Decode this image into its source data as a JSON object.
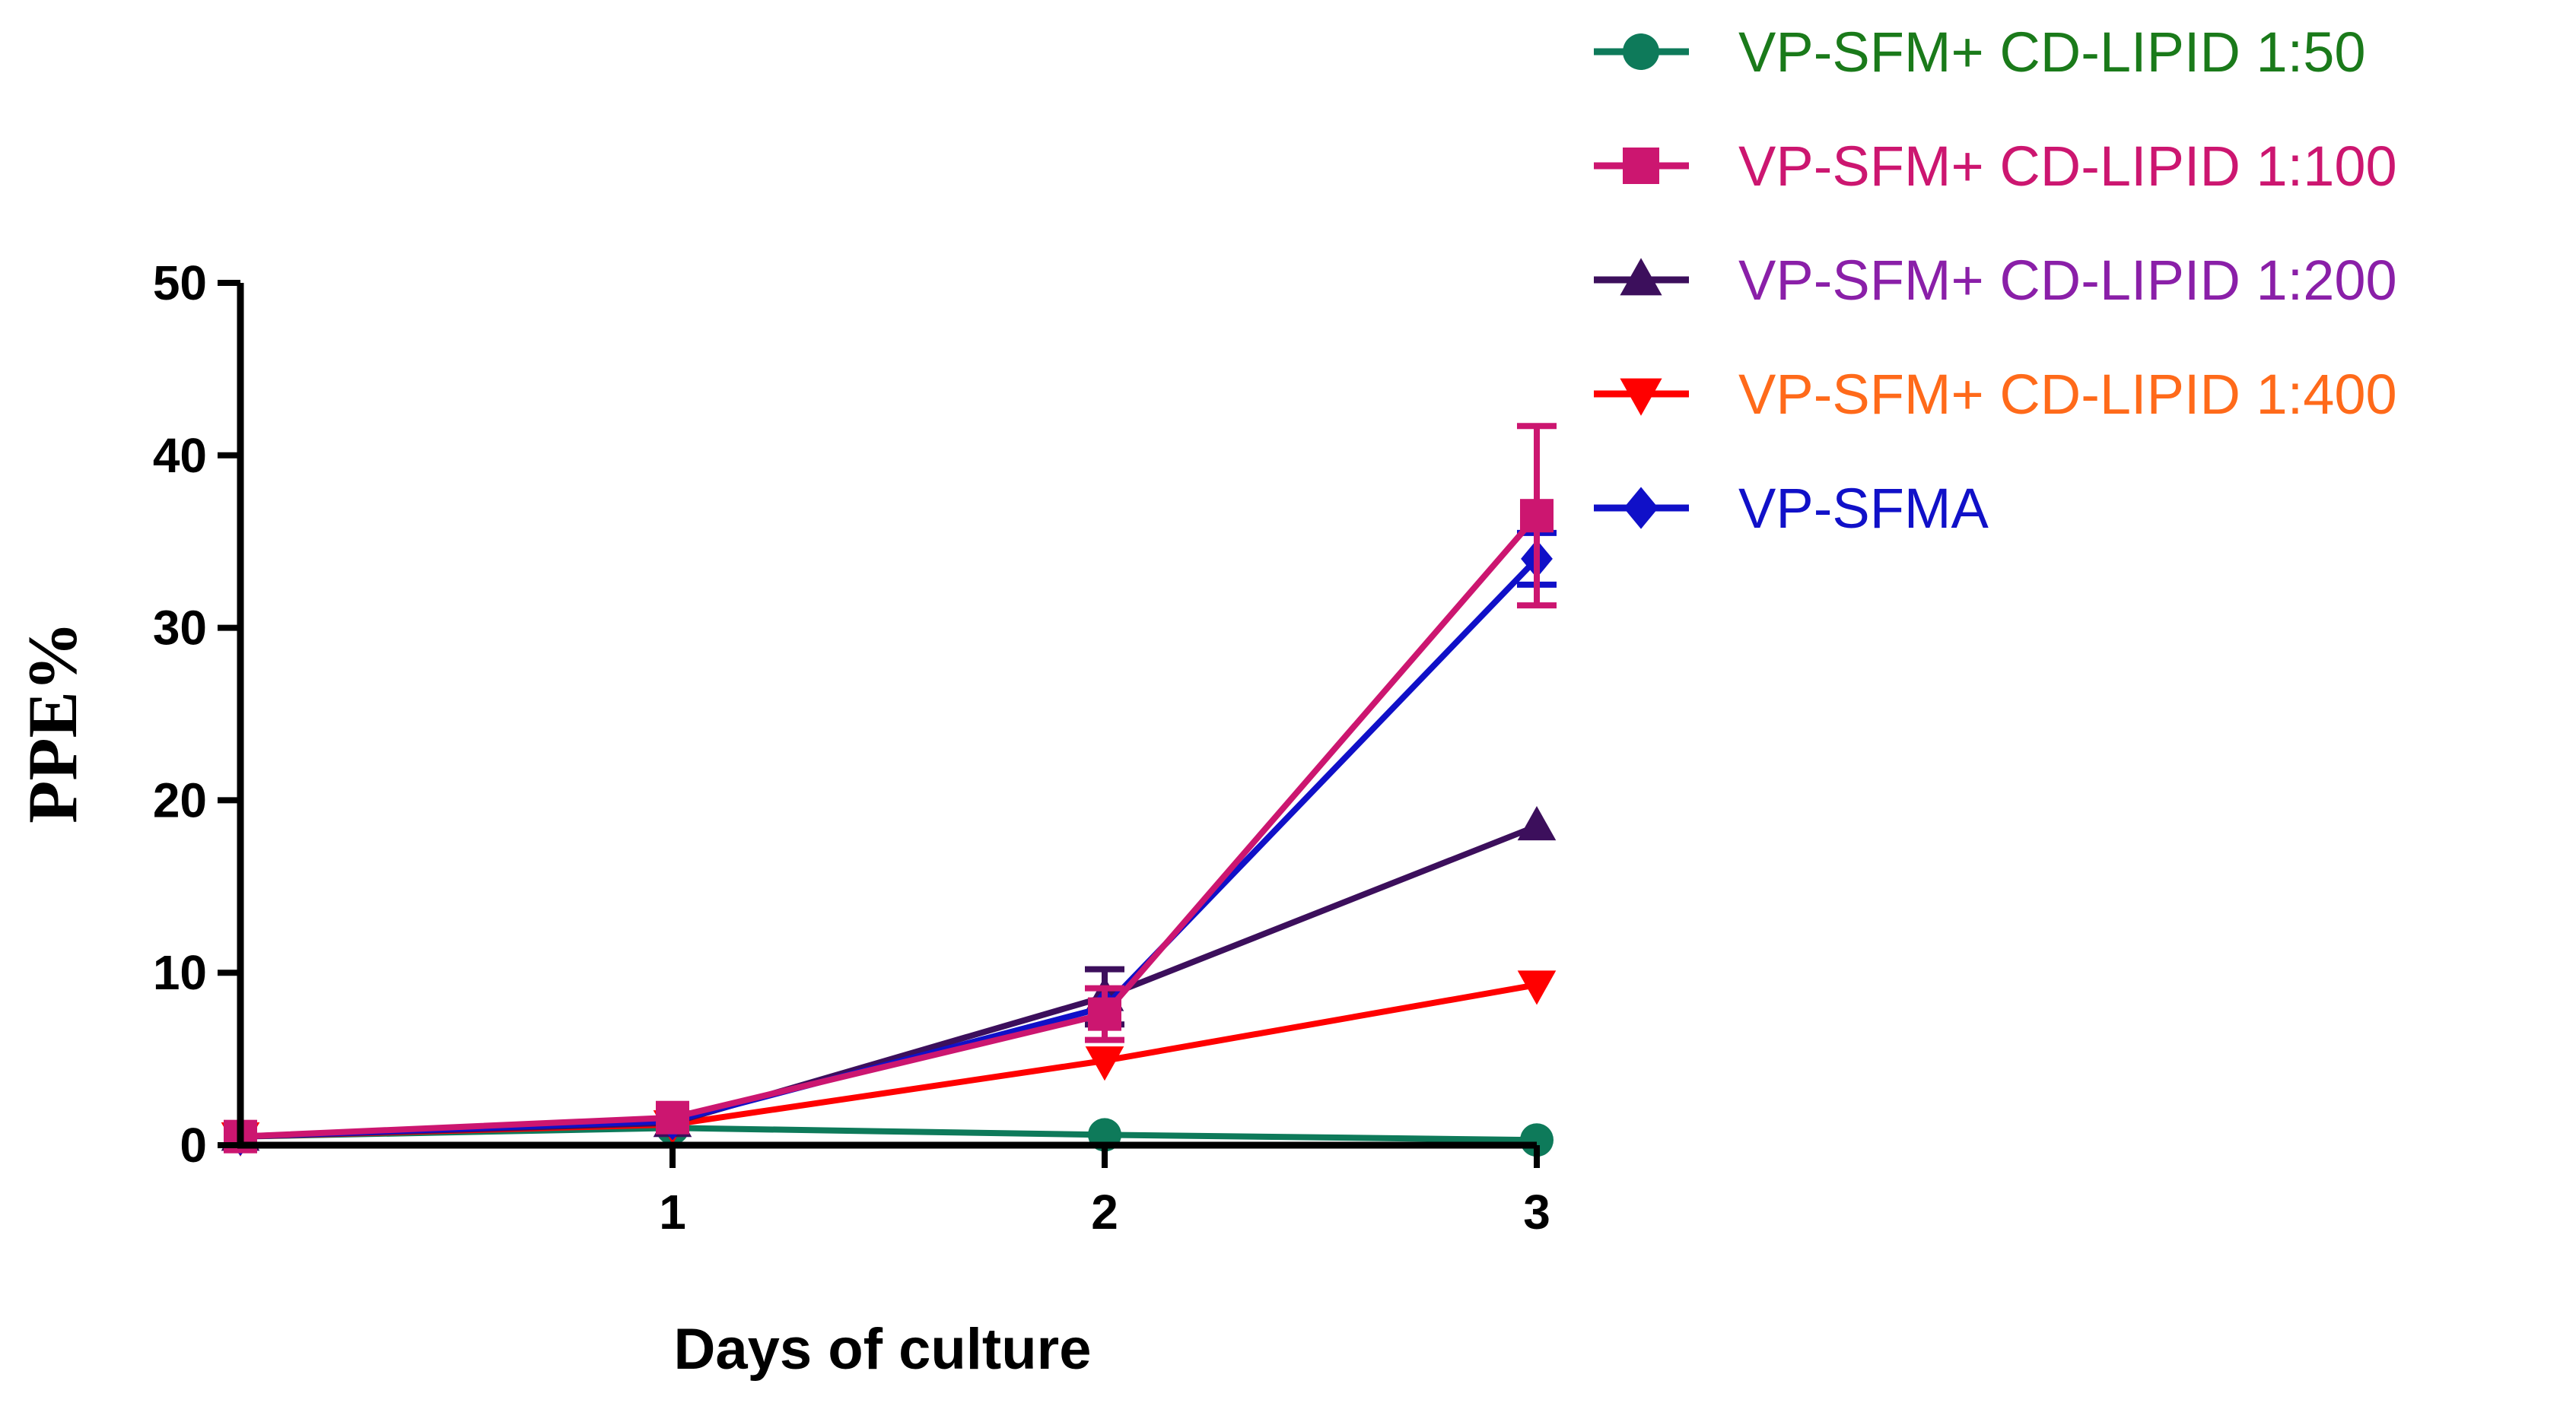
{
  "chart_data": {
    "type": "line",
    "title": "",
    "xlabel": "Days of culture",
    "ylabel": "PPE%",
    "x": [
      0,
      1,
      2,
      3
    ],
    "x_tick_labels": [
      "1",
      "2",
      "3"
    ],
    "x_ticks": [
      1,
      2,
      3
    ],
    "xlim": [
      0,
      3
    ],
    "y_ticks": [
      0,
      10,
      20,
      30,
      40,
      50
    ],
    "y_tick_labels": [
      "0",
      "10",
      "20",
      "30",
      "40",
      "50"
    ],
    "ylim": [
      0,
      50
    ],
    "grid": false,
    "legend_position": "top-right",
    "series": [
      {
        "name": "VP-SFM+ CD-LIPID 1:50",
        "color": "#0e7a5a",
        "label_color": "#1a7a1a",
        "marker": "circle",
        "values": [
          0.5,
          1.0,
          0.6,
          0.3
        ],
        "errors": [
          0,
          0,
          0,
          0
        ]
      },
      {
        "name": "VP-SFM+ CD-LIPID 1:100",
        "color": "#cc1670",
        "label_color": "#cc1670",
        "marker": "square",
        "values": [
          0.5,
          1.6,
          7.6,
          36.5
        ],
        "errors": [
          0,
          0,
          1.5,
          5.2
        ]
      },
      {
        "name": "VP-SFM+ CD-LIPID 1:200",
        "color": "#3c0f5c",
        "label_color": "#8a1fa8",
        "marker": "triangle-up",
        "values": [
          0.5,
          1.3,
          8.6,
          18.5
        ],
        "errors": [
          0,
          0,
          1.6,
          0
        ]
      },
      {
        "name": "VP-SFM+ CD-LIPID 1:400",
        "color": "#ff0000",
        "label_color": "#ff6a1a",
        "marker": "triangle-down",
        "values": [
          0.5,
          1.2,
          4.9,
          9.3
        ],
        "errors": [
          0,
          0,
          0,
          0
        ]
      },
      {
        "name": "VP-SFMA",
        "color": "#1010c8",
        "label_color": "#1010c8",
        "marker": "diamond",
        "values": [
          0.5,
          1.4,
          8.0,
          34.0
        ],
        "errors": [
          0,
          0,
          0,
          1.5
        ]
      }
    ]
  }
}
